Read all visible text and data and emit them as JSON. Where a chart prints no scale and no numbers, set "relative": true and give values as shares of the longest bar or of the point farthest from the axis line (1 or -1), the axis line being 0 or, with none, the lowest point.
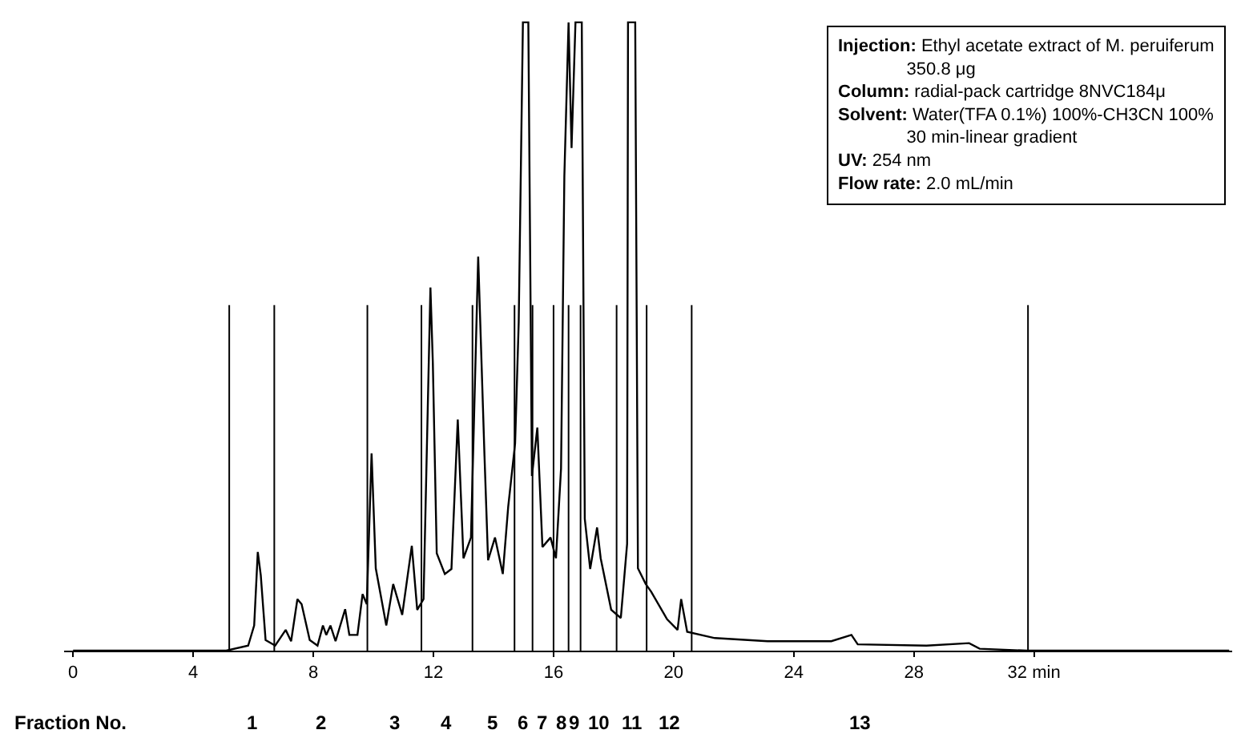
{
  "chart_data": {
    "type": "line",
    "relative": true,
    "marker": "none",
    "line_style": "solid",
    "xlim": [
      -0.3,
      38.6
    ],
    "xticks": [
      0,
      4,
      8,
      12,
      16,
      20,
      24,
      28,
      {
        "value": 32,
        "label": "32 min"
      }
    ],
    "series": [
      {
        "color": "#000000",
        "x": [
          0,
          5.1,
          5.83,
          6.03,
          6.15,
          6.25,
          6.41,
          6.73,
          7.08,
          7.26,
          7.47,
          7.61,
          7.88,
          8.14,
          8.32,
          8.43,
          8.57,
          8.74,
          9.06,
          9.2,
          9.47,
          9.64,
          9.78,
          9.94,
          10.08,
          10.43,
          10.66,
          10.96,
          11.28,
          11.46,
          11.67,
          11.9,
          11.98,
          12.11,
          12.38,
          12.6,
          12.81,
          13.0,
          13.25,
          13.49,
          13.7,
          13.82,
          14.05,
          14.31,
          14.49,
          14.72,
          14.84,
          14.98,
          15.16,
          15.28,
          15.46,
          15.63,
          15.9,
          16.08,
          16.25,
          16.36,
          16.5,
          16.6,
          16.73,
          16.94,
          17.04,
          17.22,
          17.45,
          17.57,
          17.92,
          18.24,
          18.45,
          18.48,
          18.72,
          18.81,
          19.07,
          19.25,
          19.78,
          20.13,
          20.25,
          20.45,
          21.37,
          23.13,
          25.25,
          25.92,
          26.13,
          28.42,
          29.84,
          30.19,
          31.77,
          38.5
        ],
        "values": [
          0,
          0,
          0.008,
          0.04,
          0.157,
          0.12,
          0.017,
          0.008,
          0.033,
          0.015,
          0.082,
          0.074,
          0.017,
          0.008,
          0.04,
          0.025,
          0.04,
          0.015,
          0.066,
          0.025,
          0.025,
          0.09,
          0.074,
          0.314,
          0.131,
          0.04,
          0.106,
          0.057,
          0.167,
          0.065,
          0.082,
          0.578,
          0.458,
          0.155,
          0.122,
          0.13,
          0.368,
          0.147,
          0.18,
          0.627,
          0.31,
          0.144,
          0.18,
          0.122,
          0.229,
          0.33,
          0.523,
          1.0,
          1.0,
          0.278,
          0.355,
          0.165,
          0.18,
          0.147,
          0.29,
          0.755,
          1.0,
          0.8,
          1.0,
          1.0,
          0.21,
          0.13,
          0.196,
          0.147,
          0.065,
          0.052,
          0.17,
          1.0,
          1.0,
          0.131,
          0.106,
          0.094,
          0.05,
          0.033,
          0.082,
          0.03,
          0.02,
          0.015,
          0.015,
          0.025,
          0.01,
          0.008,
          0.012,
          0.003,
          0,
          0
        ]
      }
    ],
    "ref_lines": [
      {
        "axis": "x",
        "value": 5.2,
        "color": "#000000"
      },
      {
        "axis": "x",
        "value": 6.7,
        "color": "#000000"
      },
      {
        "axis": "x",
        "value": 9.8,
        "color": "#000000"
      },
      {
        "axis": "x",
        "value": 11.6,
        "color": "#000000"
      },
      {
        "axis": "x",
        "value": 13.3,
        "color": "#000000"
      },
      {
        "axis": "x",
        "value": 14.7,
        "color": "#000000"
      },
      {
        "axis": "x",
        "value": 15.3,
        "color": "#000000"
      },
      {
        "axis": "x",
        "value": 16.0,
        "color": "#000000"
      },
      {
        "axis": "x",
        "value": 16.5,
        "color": "#000000"
      },
      {
        "axis": "x",
        "value": 16.9,
        "color": "#000000"
      },
      {
        "axis": "x",
        "value": 18.1,
        "color": "#000000"
      },
      {
        "axis": "x",
        "value": 19.1,
        "color": "#000000"
      },
      {
        "axis": "x",
        "value": 20.6,
        "color": "#000000"
      },
      {
        "axis": "x",
        "value": 31.8,
        "color": "#000000"
      }
    ],
    "annotations": [
      "Fraction No.",
      "1",
      "2",
      "3",
      "4",
      "5",
      "6",
      "7",
      "8",
      "9",
      "10",
      "11",
      "12",
      "13",
      "Injection: Ethyl acetate extract of M. peruiferum",
      "350.8 μg",
      "Column: radial-pack cartridge 8NVC184μ",
      "Solvent: Water(TFA 0.1%) 100%-CH3CN 100%",
      "30 min-linear gradient",
      "UV: 254 nm",
      "Flow rate: 2.0 mL/min"
    ]
  }
}
